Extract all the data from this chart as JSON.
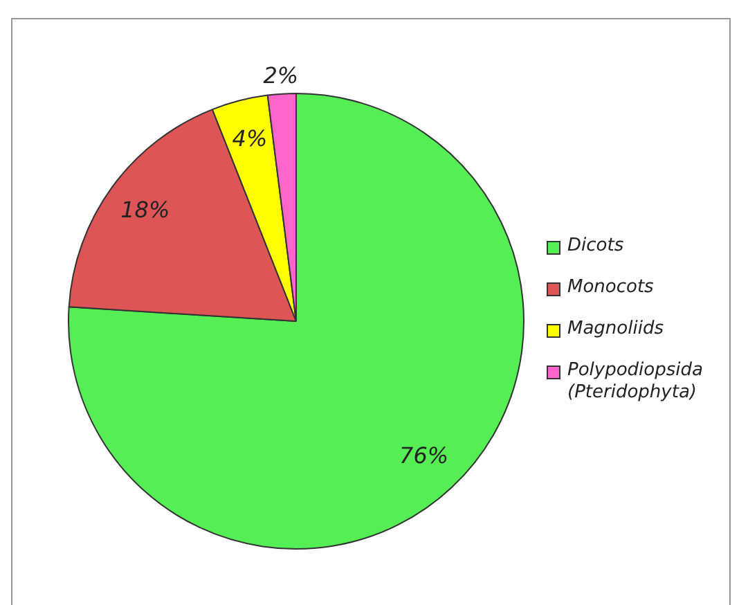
{
  "chart_data": {
    "type": "pie",
    "categories": [
      "Dicots",
      "Monocots",
      "Magnoliids",
      "Polypodiopsida (Pteridophyta)"
    ],
    "values": [
      76,
      18,
      4,
      2
    ],
    "colors": [
      "#55ee55",
      "#dd5555",
      "#ffff00",
      "#ff66cc"
    ],
    "value_labels": [
      "76%",
      "18%",
      "4%",
      "2%"
    ],
    "legend": "right"
  }
}
